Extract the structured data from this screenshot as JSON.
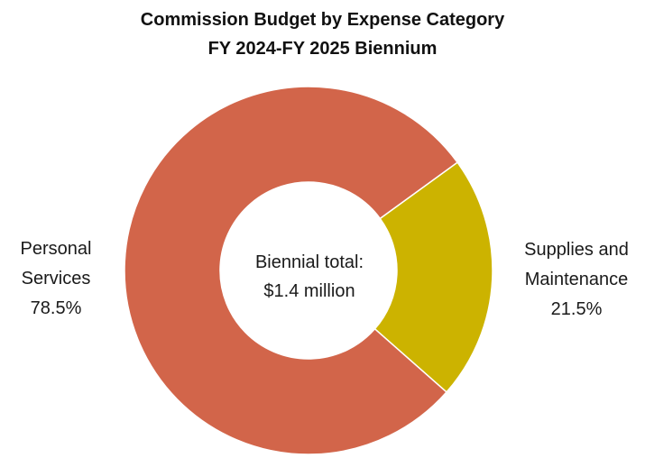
{
  "chart_data": {
    "type": "pie",
    "variant": "donut",
    "title": [
      "Commission Budget by Expense Category",
      "FY 2024-FY 2025 Biennium"
    ],
    "center_label": [
      "Biennial total:",
      "$1.4 million"
    ],
    "slices": [
      {
        "label": [
          "Supplies and",
          "Maintenance"
        ],
        "value": 21.5,
        "value_label": "21.5%",
        "color": "#CCB300"
      },
      {
        "label": [
          "Personal",
          "Services"
        ],
        "value": 78.5,
        "value_label": "78.5%",
        "color": "#D2654A"
      }
    ],
    "start_angle_deg": 54,
    "direction": "clockwise",
    "legend": "none"
  }
}
